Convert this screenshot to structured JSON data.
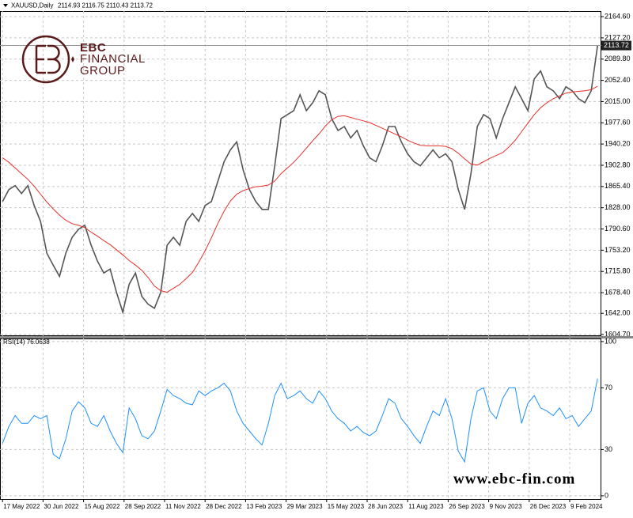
{
  "chart_data": [
    {
      "type": "line",
      "title": "XAUUSD,Daily",
      "subtitle": "2114.93 2116.75 2110.43 2113.72",
      "x": [
        0,
        5,
        10,
        15,
        20,
        25,
        30,
        35,
        40,
        45,
        50,
        55,
        60,
        65,
        70,
        75,
        80,
        85,
        90,
        95,
        100,
        105,
        110,
        115,
        120,
        125,
        130,
        135,
        140,
        145,
        150,
        155,
        160,
        165,
        170,
        175,
        180,
        185,
        190,
        195,
        200,
        205,
        210,
        215,
        220,
        225,
        230,
        235,
        240,
        245,
        250,
        255,
        260,
        265,
        270,
        275,
        280,
        285,
        290,
        295,
        300,
        305,
        310,
        315,
        320,
        325,
        330,
        335,
        340,
        345,
        350,
        355,
        360,
        365,
        370,
        375,
        380,
        385,
        390,
        395,
        400,
        405,
        410,
        415,
        420,
        425,
        430,
        435,
        440,
        445,
        450,
        455,
        460,
        465,
        470
      ],
      "series": [
        {
          "color": "#555555",
          "values": [
            1839,
            1860,
            1867,
            1853,
            1867,
            1832,
            1804,
            1748,
            1727,
            1707,
            1748,
            1776,
            1790,
            1797,
            1762,
            1734,
            1713,
            1720,
            1679,
            1644,
            1693,
            1713,
            1672,
            1658,
            1651,
            1679,
            1762,
            1776,
            1762,
            1804,
            1818,
            1804,
            1832,
            1839,
            1874,
            1909,
            1930,
            1944,
            1895,
            1860,
            1839,
            1825,
            1825,
            1902,
            1985,
            1992,
            1999,
            2027,
            1999,
            2013,
            2034,
            2027,
            1985,
            1964,
            1971,
            1951,
            1964,
            1937,
            1916,
            1909,
            1937,
            1971,
            1971,
            1944,
            1923,
            1909,
            1902,
            1916,
            1930,
            1916,
            1923,
            1909,
            1860,
            1825,
            1888,
            1971,
            1992,
            1985,
            1951,
            1985,
            2013,
            2041,
            2020,
            1999,
            2055,
            2069,
            2041,
            2034,
            2020,
            2041,
            2034,
            2020,
            2013,
            2034,
            2113.72
          ]
        },
        {
          "color": "#e8302a",
          "values": [
            1916,
            1908,
            1898,
            1888,
            1878,
            1866,
            1852,
            1838,
            1826,
            1815,
            1806,
            1800,
            1797,
            1793,
            1785,
            1778,
            1770,
            1763,
            1754,
            1745,
            1735,
            1727,
            1718,
            1705,
            1690,
            1682,
            1679,
            1686,
            1693,
            1703,
            1714,
            1732,
            1752,
            1775,
            1800,
            1822,
            1840,
            1852,
            1858,
            1862,
            1865,
            1866,
            1868,
            1875,
            1888,
            1898,
            1908,
            1920,
            1933,
            1946,
            1958,
            1972,
            1983,
            1989,
            1990,
            1987,
            1984,
            1981,
            1978,
            1973,
            1968,
            1963,
            1958,
            1953,
            1947,
            1942,
            1938,
            1937,
            1937,
            1937,
            1936,
            1932,
            1924,
            1914,
            1905,
            1903,
            1909,
            1915,
            1920,
            1925,
            1935,
            1947,
            1962,
            1977,
            1992,
            2004,
            2013,
            2020,
            2025,
            2030,
            2032,
            2033,
            2034,
            2036,
            2042
          ]
        }
      ],
      "xlim": [
        -2,
        473
      ],
      "ylim": [
        1601.9,
        2174.4
      ],
      "yticks": [
        {
          "value": 2164.6,
          "label": "2164.60"
        },
        {
          "value": 2127.2,
          "label": "2127.20"
        },
        {
          "value": 2089.8,
          "label": "2089.80"
        },
        {
          "value": 2052.4,
          "label": "2052.40"
        },
        {
          "value": 2015,
          "label": "2015.00"
        },
        {
          "value": 1977.6,
          "label": "1977.60"
        },
        {
          "value": 1940.2,
          "label": "1940.20"
        },
        {
          "value": 1902.8,
          "label": "1902.80"
        },
        {
          "value": 1865.4,
          "label": "1865.40"
        },
        {
          "value": 1828,
          "label": "1828.00"
        },
        {
          "value": 1790.6,
          "label": "1790.60"
        },
        {
          "value": 1753.2,
          "label": "1753.20"
        },
        {
          "value": 1715.8,
          "label": "1715.80"
        },
        {
          "value": 1678.4,
          "label": "1678.40"
        },
        {
          "value": 1642,
          "label": "1642.00"
        },
        {
          "value": 1604.7,
          "label": "1604.70"
        }
      ],
      "last_price": {
        "value": 2113.72,
        "label": "2113.72"
      },
      "grid": true
    },
    {
      "type": "line",
      "title": "RSI(14) 76.0638",
      "x": [
        0,
        5,
        10,
        15,
        20,
        25,
        30,
        35,
        40,
        45,
        50,
        55,
        60,
        65,
        70,
        75,
        80,
        85,
        90,
        95,
        100,
        105,
        110,
        115,
        120,
        125,
        130,
        135,
        140,
        145,
        150,
        155,
        160,
        165,
        170,
        175,
        180,
        185,
        190,
        195,
        200,
        205,
        210,
        215,
        220,
        225,
        230,
        235,
        240,
        245,
        250,
        255,
        260,
        265,
        270,
        275,
        280,
        285,
        290,
        295,
        300,
        305,
        310,
        315,
        320,
        325,
        330,
        335,
        340,
        345,
        350,
        355,
        360,
        365,
        370,
        375,
        380,
        385,
        390,
        395,
        400,
        405,
        410,
        415,
        420,
        425,
        430,
        435,
        440,
        445,
        450,
        455,
        460,
        465,
        470
      ],
      "series": [
        {
          "color": "#1e90ff",
          "values": [
            34,
            45,
            52,
            47,
            47,
            52,
            50,
            52,
            27,
            24,
            37,
            55,
            61,
            57,
            47,
            45,
            52,
            42,
            34,
            28,
            57,
            50,
            39,
            37,
            42,
            55,
            69,
            65,
            63,
            60,
            59,
            68,
            65,
            68,
            70,
            73,
            68,
            55,
            47,
            42,
            37,
            33,
            47,
            65,
            73,
            63,
            65,
            68,
            63,
            60,
            68,
            63,
            55,
            50,
            47,
            42,
            45,
            41,
            39,
            42,
            52,
            63,
            60,
            50,
            45,
            39,
            34,
            45,
            55,
            52,
            63,
            50,
            29,
            22,
            50,
            68,
            70,
            55,
            50,
            63,
            70,
            70,
            47,
            60,
            65,
            57,
            55,
            52,
            57,
            50,
            52,
            45,
            50,
            55,
            76
          ]
        }
      ],
      "xlim": [
        -2,
        473
      ],
      "ylim": [
        -2.6,
        102
      ],
      "yticks": [
        0,
        30,
        70,
        100
      ],
      "xticks": [
        {
          "value": 0,
          "label": "17 May 2022"
        },
        {
          "value": 32,
          "label": "30 Jun 2022"
        },
        {
          "value": 64,
          "label": "15 Aug 2022"
        },
        {
          "value": 96,
          "label": "28 Sep 2022"
        },
        {
          "value": 128,
          "label": "11 Nov 2022"
        },
        {
          "value": 160,
          "label": "28 Dec 2022"
        },
        {
          "value": 192,
          "label": "13 Feb 2023"
        },
        {
          "value": 224,
          "label": "29 Mar 2023"
        },
        {
          "value": 256,
          "label": "15 May 2023"
        },
        {
          "value": 288,
          "label": "28 Jun 2023"
        },
        {
          "value": 320,
          "label": "11 Aug 2023"
        },
        {
          "value": 352,
          "label": "26 Sep 2023"
        },
        {
          "value": 384,
          "label": "9 Nov 2023"
        },
        {
          "value": 416,
          "label": "26 Dec 2023"
        },
        {
          "value": 448,
          "label": "9 Feb 2024"
        }
      ],
      "grid": true
    }
  ],
  "logo": {
    "lines": [
      "EBC",
      "FINANCIAL",
      "GROUP"
    ]
  },
  "watermark": "www.ebc-fin.com"
}
